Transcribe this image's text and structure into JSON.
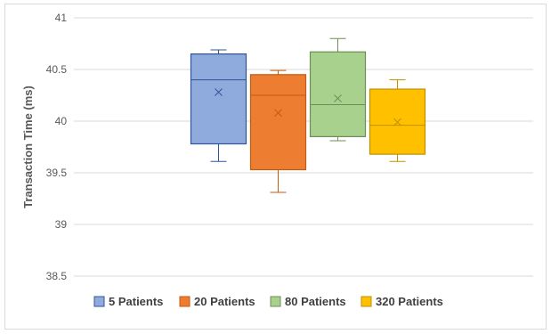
{
  "chart_data": {
    "type": "box",
    "ylabel": "Transaction Time (ms)",
    "xlabel": "",
    "ylim": [
      38.5,
      41
    ],
    "yticks": [
      "38.5",
      "39",
      "39.5",
      "40",
      "40.5",
      "41"
    ],
    "grid": true,
    "legend_position": "bottom",
    "series": [
      {
        "name": "5 Patients",
        "color": "#8faadc",
        "stroke": "#2f5597",
        "min": 39.61,
        "q1": 39.78,
        "median": 40.4,
        "q3": 40.65,
        "max": 40.69,
        "mean": 40.28
      },
      {
        "name": "20 Patients",
        "color": "#ed7d31",
        "stroke": "#c55a11",
        "min": 39.31,
        "q1": 39.53,
        "median": 40.25,
        "q3": 40.45,
        "max": 40.49,
        "mean": 40.08
      },
      {
        "name": "80 Patients",
        "color": "#a9d18e",
        "stroke": "#6e8d57",
        "min": 39.81,
        "q1": 39.85,
        "median": 40.16,
        "q3": 40.67,
        "max": 40.8,
        "mean": 40.22
      },
      {
        "name": "320 Patients",
        "color": "#ffc000",
        "stroke": "#bf9000",
        "min": 39.61,
        "q1": 39.68,
        "median": 39.96,
        "q3": 40.31,
        "max": 40.4,
        "mean": 39.99
      }
    ]
  }
}
